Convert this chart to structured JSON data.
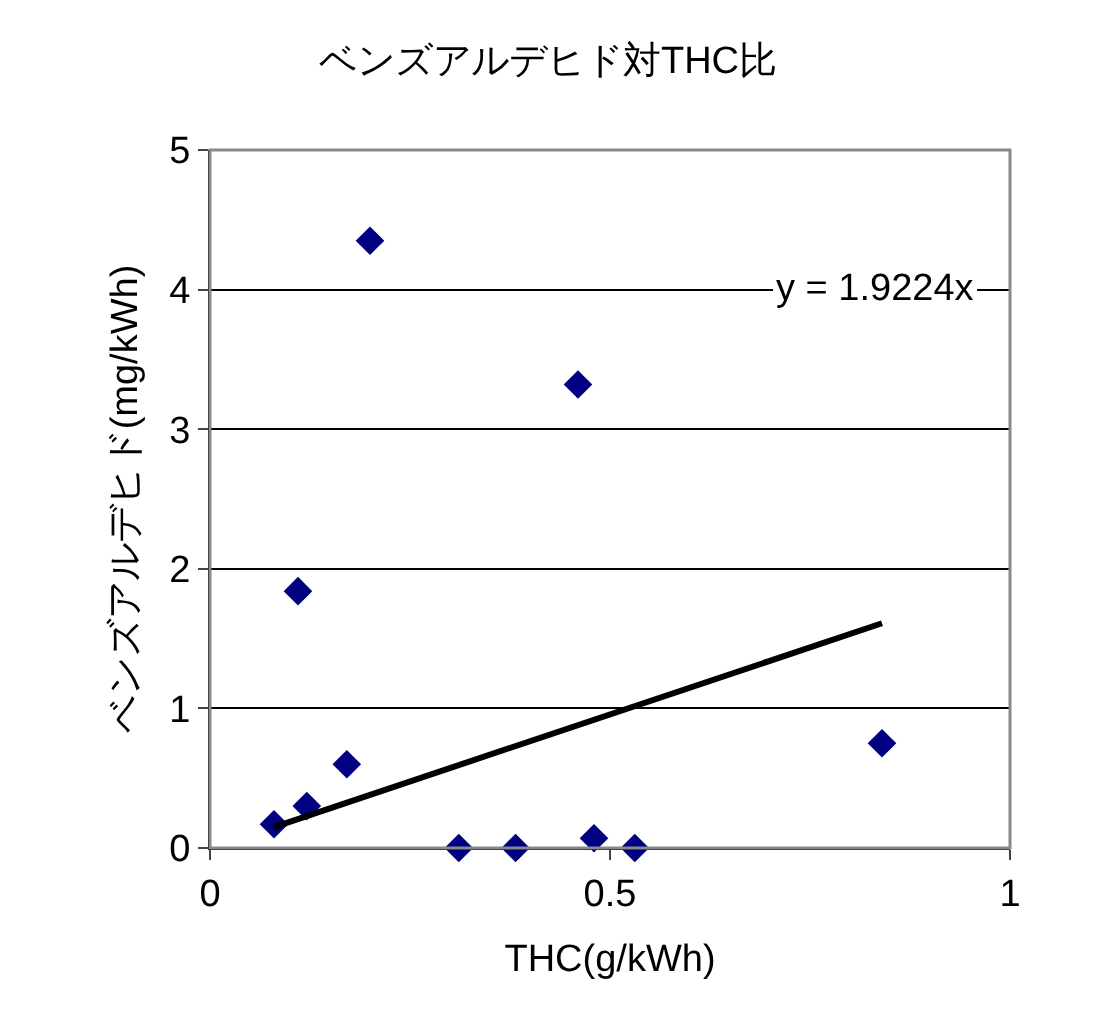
{
  "chart_data": {
    "type": "scatter",
    "title": "ベンズアルデヒド対THC比",
    "xlabel": "THC(g/kWh)",
    "ylabel": "ベンズアルデヒド(mg/kWh)",
    "xlim": [
      0,
      1
    ],
    "xticks": [
      0,
      0.5,
      1
    ],
    "ylim": [
      0,
      5
    ],
    "yticks": [
      0,
      1,
      2,
      3,
      4,
      5
    ],
    "grid": "y",
    "series": [
      {
        "marker": "diamond",
        "color": "#000080",
        "x": [
          0.08,
          0.11,
          0.121,
          0.171,
          0.2,
          0.311,
          0.382,
          0.46,
          0.48,
          0.531,
          0.84
        ],
        "values": [
          0.17,
          1.84,
          0.3,
          0.6,
          4.35,
          0,
          0,
          3.32,
          0.07,
          0,
          0.75
        ]
      },
      {
        "type": "line",
        "marker": "none",
        "color": "#000000",
        "x": [
          0.08,
          0.84
        ],
        "values": [
          0.15,
          1.61
        ]
      }
    ],
    "annotations": [
      "y = 1.9224x"
    ]
  }
}
